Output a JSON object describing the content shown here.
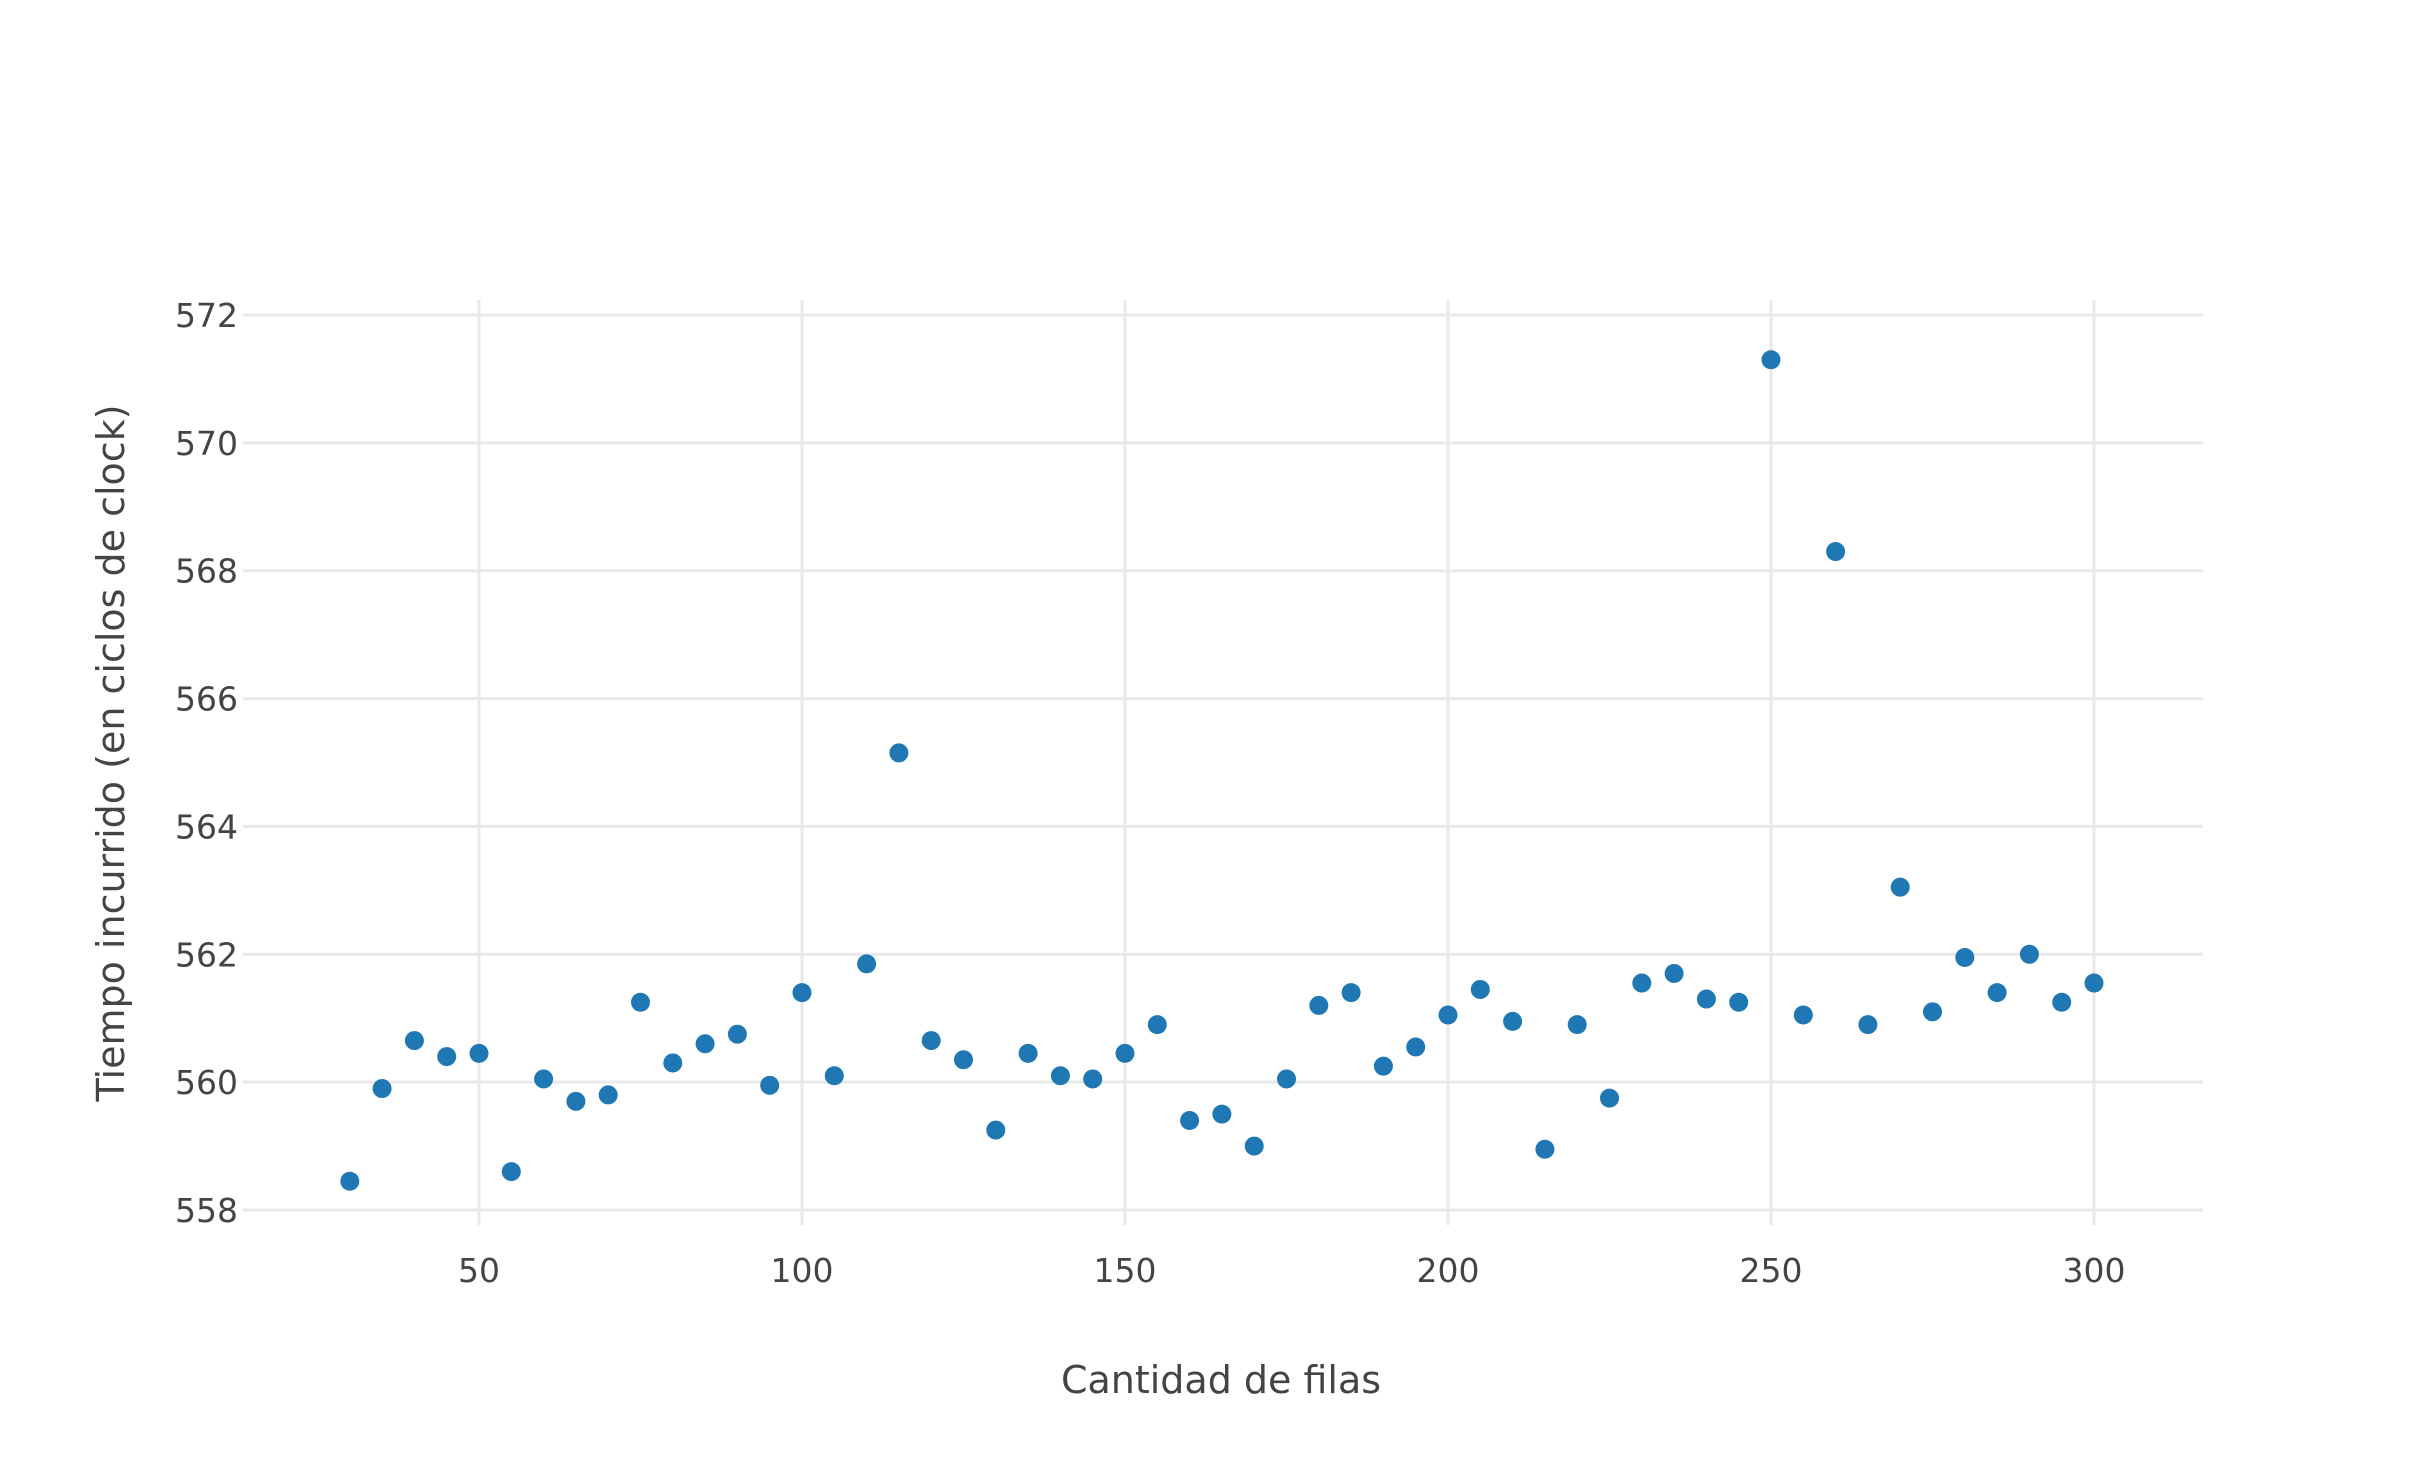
{
  "chart_data": {
    "type": "scatter",
    "title": "",
    "xlabel": "Cantidad de filas",
    "ylabel": "Tiempo incurrido (en ciclos de clock)",
    "xlim": [
      15,
      316
    ],
    "ylim": [
      557.9,
      572.3
    ],
    "xticks": [
      50,
      100,
      150,
      200,
      250,
      300
    ],
    "yticks": [
      558,
      560,
      562,
      564,
      566,
      568,
      570,
      572
    ],
    "grid": true,
    "legend": "none",
    "marker_color": "#1f77b4",
    "series": [
      {
        "x": [
          30,
          35,
          40,
          45,
          50,
          55,
          60,
          65,
          70,
          75,
          80,
          85,
          90,
          95,
          100,
          105,
          110,
          115,
          120,
          125,
          130,
          135,
          140,
          145,
          150,
          155,
          160,
          165,
          170,
          175,
          180,
          185,
          190,
          195,
          200,
          205,
          210,
          215,
          220,
          225,
          230,
          235,
          240,
          245,
          250,
          255,
          260,
          265,
          270,
          275,
          280,
          285,
          290,
          295,
          300
        ],
        "y": [
          558.45,
          559.9,
          560.65,
          560.4,
          560.45,
          558.6,
          560.05,
          559.7,
          559.8,
          561.25,
          560.3,
          560.6,
          560.75,
          559.95,
          561.4,
          560.1,
          561.85,
          565.15,
          560.65,
          560.35,
          559.25,
          560.45,
          560.1,
          560.05,
          560.45,
          560.9,
          559.4,
          559.5,
          559.0,
          560.05,
          561.2,
          561.4,
          560.25,
          560.55,
          561.05,
          561.45,
          560.95,
          558.95,
          560.9,
          559.75,
          561.55,
          561.7,
          561.3,
          561.25,
          571.3,
          561.05,
          568.3,
          560.9,
          563.05,
          561.1,
          561.95,
          561.4,
          562.0,
          561.25,
          561.55
        ]
      }
    ]
  }
}
